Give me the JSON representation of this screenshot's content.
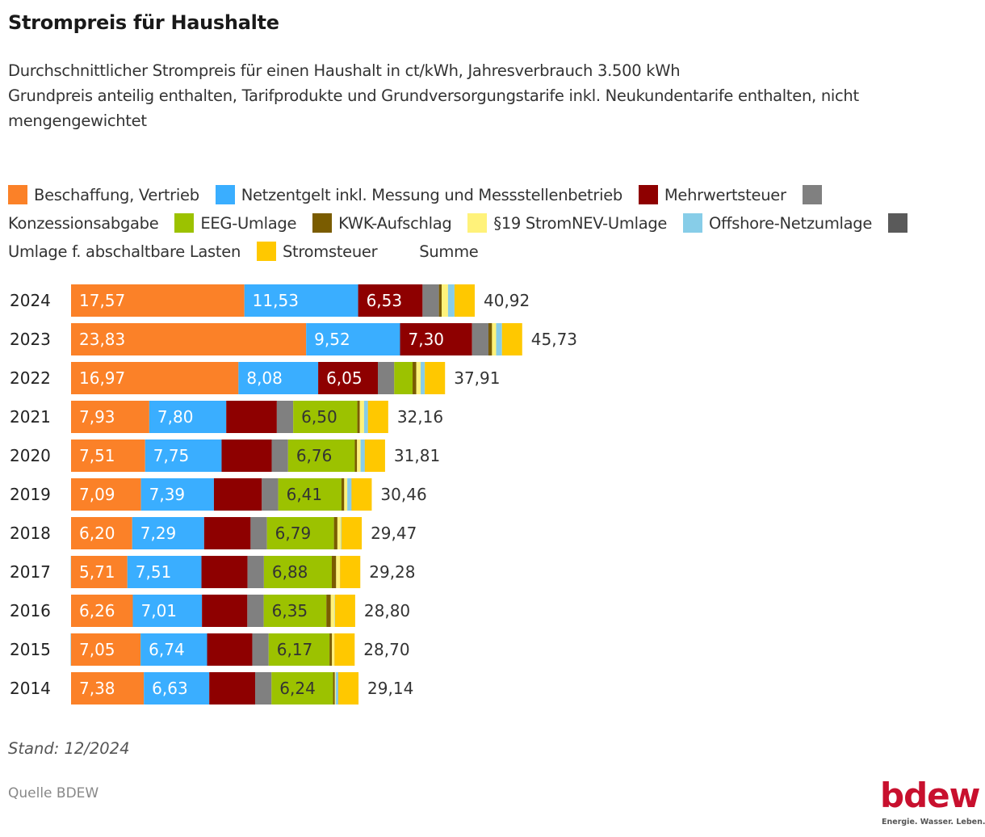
{
  "header": {
    "title": "Strompreis für Haushalte",
    "subtitle_lines": [
      "Durchschnittlicher Strompreis für einen Haushalt in ct/kWh, Jahresverbrauch 3.500 kWh",
      "Grundpreis anteilig enthalten, Tarifprodukte und Grundversorgungstarife inkl. Neukundentarife enthalten, nicht mengengewichtet"
    ]
  },
  "legend": [
    {
      "label": "Beschaffung, Vertrieb",
      "color": "#fb8128"
    },
    {
      "label": "Netzentgelt inkl. Messung und Messstellenbetrieb",
      "color": "#3aaeff"
    },
    {
      "label": "Mehrwertsteuer",
      "color": "#8e0000"
    },
    {
      "label": "Konzessionsabgabe",
      "color": "#808080"
    },
    {
      "label": "EEG-Umlage",
      "color": "#9cc200"
    },
    {
      "label": "KWK-Aufschlag",
      "color": "#7a5c00"
    },
    {
      "label": "§19 StromNEV-Umlage",
      "color": "#fff27a"
    },
    {
      "label": "Offshore-Netzumlage",
      "color": "#87cde8"
    },
    {
      "label": "Umlage f. abschaltbare Lasten",
      "color": "#5a5a5a"
    },
    {
      "label": "Stromsteuer",
      "color": "#ffc800"
    },
    {
      "label": "Summe",
      "color": null
    }
  ],
  "footer": {
    "stand": "Stand: 12/2024",
    "source": "Quelle BDEW",
    "logo_text": "bdew",
    "logo_tagline": "Energie. Wasser. Leben."
  },
  "chart_data": {
    "type": "bar",
    "orientation": "horizontal",
    "stacked": true,
    "title": "Strompreis für Haushalte",
    "xlabel": "",
    "ylabel": "",
    "unit": "ct/kWh",
    "xlim": [
      0,
      46
    ],
    "grid": false,
    "legend_position": "top",
    "categories": [
      "2024",
      "2023",
      "2022",
      "2021",
      "2020",
      "2019",
      "2018",
      "2017",
      "2016",
      "2015",
      "2014"
    ],
    "series": [
      {
        "name": "Beschaffung, Vertrieb",
        "color": "#fb8128",
        "label_color": "#ffffff",
        "labeled": true,
        "values": [
          17.57,
          23.83,
          16.97,
          7.93,
          7.51,
          7.09,
          6.2,
          5.71,
          6.26,
          7.05,
          7.38
        ]
      },
      {
        "name": "Netzentgelt inkl. Messung und Messstellenbetrieb",
        "color": "#3aaeff",
        "label_color": "#ffffff",
        "labeled": true,
        "values": [
          11.53,
          9.52,
          8.08,
          7.8,
          7.75,
          7.39,
          7.29,
          7.51,
          7.01,
          6.74,
          6.63
        ]
      },
      {
        "name": "Mehrwertsteuer",
        "color": "#8e0000",
        "label_color": "#ffffff",
        "labeled_years": [
          "2024",
          "2023",
          "2022"
        ],
        "values": [
          6.53,
          7.3,
          6.05,
          5.13,
          5.08,
          4.86,
          4.71,
          4.67,
          4.6,
          4.58,
          4.65
        ]
      },
      {
        "name": "Konzessionsabgabe",
        "color": "#808080",
        "labeled": false,
        "values": [
          1.66,
          1.66,
          1.66,
          1.66,
          1.66,
          1.66,
          1.66,
          1.66,
          1.66,
          1.66,
          1.66
        ]
      },
      {
        "name": "EEG-Umlage",
        "color": "#9cc200",
        "label_color": "#333333",
        "labeled": true,
        "values": [
          0,
          0,
          1.86,
          6.5,
          6.76,
          6.41,
          6.79,
          6.88,
          6.35,
          6.17,
          6.24
        ]
      },
      {
        "name": "KWK-Aufschlag",
        "color": "#7a5c00",
        "labeled": false,
        "values": [
          0.28,
          0.36,
          0.38,
          0.25,
          0.23,
          0.28,
          0.35,
          0.44,
          0.45,
          0.25,
          0.18
        ]
      },
      {
        "name": "§19 StromNEV-Umlage",
        "color": "#fff27a",
        "labeled": false,
        "values": [
          0.64,
          0.42,
          0.44,
          0.43,
          0.36,
          0.31,
          0.37,
          0.39,
          0.38,
          0.24,
          0.09
        ]
      },
      {
        "name": "Offshore-Netzumlage",
        "color": "#87cde8",
        "labeled": false,
        "values": [
          0.66,
          0.59,
          0.42,
          0.39,
          0.42,
          0.42,
          0.04,
          -0.03,
          0.04,
          -0.05,
          0.25
        ]
      },
      {
        "name": "Umlage f. abschaltbare Lasten",
        "color": "#5a5a5a",
        "labeled": false,
        "values": [
          0,
          0,
          0,
          0.01,
          0.01,
          0.01,
          0.01,
          0.01,
          0,
          0.01,
          0.01
        ]
      },
      {
        "name": "Stromsteuer",
        "color": "#ffc800",
        "labeled": false,
        "values": [
          2.05,
          2.05,
          2.05,
          2.05,
          2.05,
          2.05,
          2.05,
          2.05,
          2.05,
          2.05,
          2.05
        ]
      }
    ],
    "totals": [
      "40,92",
      "45,73",
      "37,91",
      "32,16",
      "31,81",
      "30,46",
      "29,47",
      "29,28",
      "28,80",
      "28,70",
      "29,14"
    ],
    "segment_labels": [
      [
        "17,57",
        "11,53",
        "6,53",
        null,
        null,
        null,
        null,
        null,
        null,
        null
      ],
      [
        "23,83",
        "9,52",
        "7,30",
        null,
        null,
        null,
        null,
        null,
        null,
        null
      ],
      [
        "16,97",
        "8,08",
        "6,05",
        null,
        null,
        null,
        null,
        null,
        null,
        null
      ],
      [
        "7,93",
        "7,80",
        null,
        null,
        "6,50",
        null,
        null,
        null,
        null,
        null
      ],
      [
        "7,51",
        "7,75",
        null,
        null,
        "6,76",
        null,
        null,
        null,
        null,
        null
      ],
      [
        "7,09",
        "7,39",
        null,
        null,
        "6,41",
        null,
        null,
        null,
        null,
        null
      ],
      [
        "6,20",
        "7,29",
        null,
        null,
        "6,79",
        null,
        null,
        null,
        null,
        null
      ],
      [
        "5,71",
        "7,51",
        null,
        null,
        "6,88",
        null,
        null,
        null,
        null,
        null
      ],
      [
        "6,26",
        "7,01",
        null,
        null,
        "6,35",
        null,
        null,
        null,
        null,
        null
      ],
      [
        "7,05",
        "6,74",
        null,
        null,
        "6,17",
        null,
        null,
        null,
        null,
        null
      ],
      [
        "7,38",
        "6,63",
        null,
        null,
        "6,24",
        null,
        null,
        null,
        null,
        null
      ]
    ]
  }
}
